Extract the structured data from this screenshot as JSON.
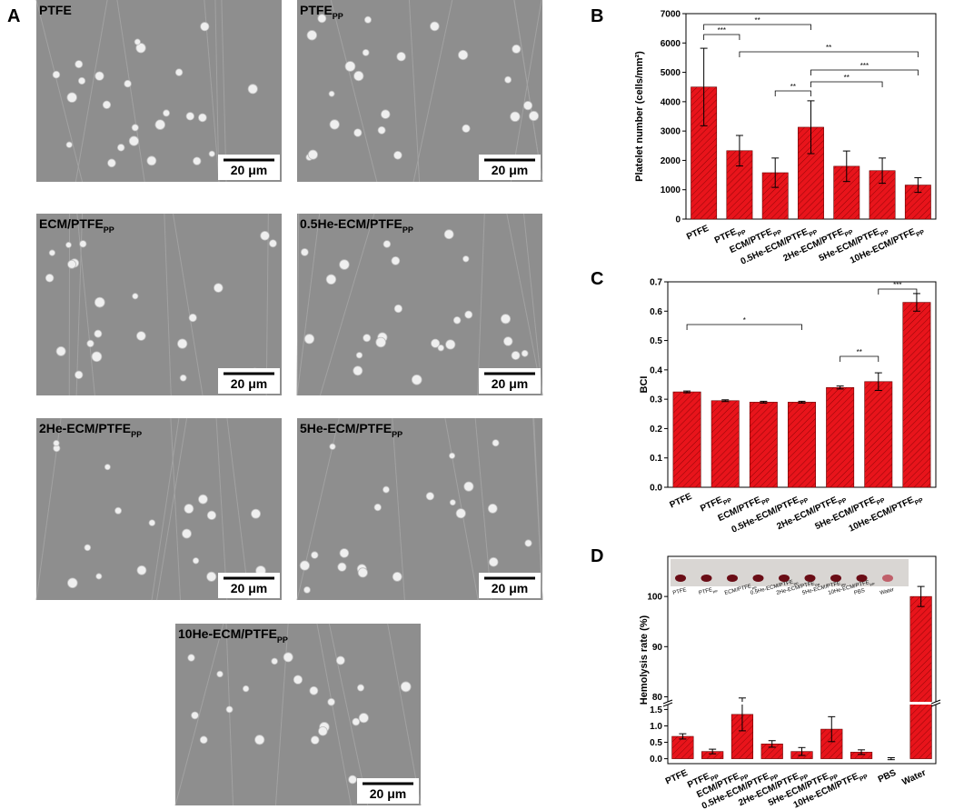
{
  "panel_labels": [
    "A",
    "B",
    "C",
    "D"
  ],
  "images": [
    {
      "label": [
        "PTFE"
      ],
      "scale_bar": "20 μm"
    },
    {
      "label": [
        "PTFE",
        "PP"
      ],
      "scale_bar": "20 μm"
    },
    {
      "label": [
        "ECM/PTFE",
        "PP"
      ],
      "scale_bar": "20 μm"
    },
    {
      "label": [
        "0.5He-ECM/PTFE",
        "PP"
      ],
      "scale_bar": "20 μm"
    },
    {
      "label": [
        "2He-ECM/PTFE",
        "PP"
      ],
      "scale_bar": "20 μm"
    },
    {
      "label": [
        "5He-ECM/PTFE",
        "PP"
      ],
      "scale_bar": "20 μm"
    },
    {
      "label": [
        "10He-ECM/PTFE",
        "PP"
      ],
      "scale_bar": "20 μm"
    }
  ],
  "chart_data": [
    {
      "type": "bar",
      "ylabel": "Platelet number (cells/mm²)",
      "color": "#e8141b",
      "categories": [
        [
          "PTFE"
        ],
        [
          "PTFE",
          "PP"
        ],
        [
          "ECM/PTFE",
          "PP"
        ],
        [
          "0.5He-ECM/PTFE",
          "PP"
        ],
        [
          "2He-ECM/PTFE",
          "PP"
        ],
        [
          "5He-ECM/PTFE",
          "PP"
        ],
        [
          "10He-ECM/PTFE",
          "PP"
        ]
      ],
      "values": [
        4500,
        2330,
        1580,
        3130,
        1800,
        1650,
        1160
      ],
      "errors": [
        1320,
        520,
        500,
        900,
        520,
        430,
        250
      ],
      "ylim": [
        0,
        7000
      ],
      "yticks": [
        0,
        1000,
        2000,
        3000,
        4000,
        5000,
        6000,
        7000
      ],
      "annotations": [
        "***",
        "**",
        "**",
        "***",
        "**",
        "**"
      ]
    },
    {
      "type": "bar",
      "ylabel": "BCI",
      "color": "#e8141b",
      "categories": [
        [
          "PTFE"
        ],
        [
          "PTFE",
          "PP"
        ],
        [
          "ECM/PTFE",
          "PP"
        ],
        [
          "0.5He-ECM/PTFE",
          "PP"
        ],
        [
          "2He-ECM/PTFE",
          "PP"
        ],
        [
          "5He-ECM/PTFE",
          "PP"
        ],
        [
          "10He-ECM/PTFE",
          "PP"
        ]
      ],
      "values": [
        0.325,
        0.295,
        0.29,
        0.29,
        0.34,
        0.36,
        0.63
      ],
      "errors": [
        0.003,
        0.003,
        0.003,
        0.003,
        0.005,
        0.03,
        0.03
      ],
      "ylim": [
        0,
        0.7
      ],
      "yticks": [
        {
          "value": 0,
          "label": "0.0"
        },
        0.1,
        0.2,
        0.3,
        0.4,
        0.5,
        0.6,
        0.7
      ],
      "annotations": [
        "*",
        "**",
        "***"
      ]
    },
    {
      "type": "broken-bar",
      "ylabel": "Hemolysis rate (%)",
      "color": "#e8141b",
      "categories": [
        [
          "PTFE"
        ],
        [
          "PTFE",
          "PP"
        ],
        [
          "ECM/PTFE",
          "PP"
        ],
        [
          "0.5He-ECM/PTFE",
          "PP"
        ],
        [
          "2He-ECM/PTFE",
          "PP"
        ],
        [
          "5He-ECM/PTFE",
          "PP"
        ],
        [
          "10He-ECM/PTFE",
          "PP"
        ],
        [
          "PBS"
        ],
        [
          "Water"
        ]
      ],
      "values": [
        0.68,
        0.22,
        1.35,
        0.45,
        0.22,
        0.9,
        0.2,
        0,
        100
      ],
      "errors": [
        0.08,
        0.07,
        0.5,
        0.1,
        0.12,
        0.38,
        0.07,
        0.03,
        2
      ],
      "ylim": [
        -0.15,
        1.65
      ],
      "yticks": [
        {
          "value": 0,
          "label": "0.0"
        },
        0.5,
        {
          "value": 1,
          "label": "1.0"
        },
        1.5
      ],
      "ylim_upper": [
        79,
        108
      ],
      "yticks_upper": [
        80,
        90,
        100
      ],
      "axis_break": true
    }
  ]
}
